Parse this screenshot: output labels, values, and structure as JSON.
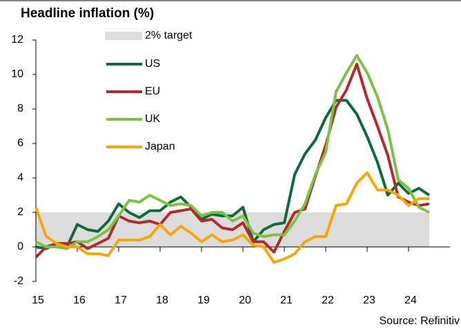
{
  "chart_data": {
    "type": "line",
    "title": "Headline inflation (%)",
    "source": "Source: Refinitiv",
    "target": {
      "name": "2% target",
      "ylim": [
        0,
        2
      ],
      "xlim": [
        2015,
        2024.5
      ],
      "color": "#dcdcdc"
    },
    "x": [
      2015,
      2015.25,
      2015.5,
      2015.75,
      2016,
      2016.25,
      2016.5,
      2016.75,
      2017,
      2017.25,
      2017.5,
      2017.75,
      2018,
      2018.25,
      2018.5,
      2018.75,
      2019,
      2019.25,
      2019.5,
      2019.75,
      2020,
      2020.25,
      2020.5,
      2020.75,
      2021,
      2021.25,
      2021.5,
      2021.75,
      2022,
      2022.25,
      2022.5,
      2022.75,
      2023,
      2023.25,
      2023.5,
      2023.75,
      2024,
      2024.25,
      2024.5
    ],
    "series": [
      {
        "name": "US",
        "color": "#0b6b3a",
        "values": [
          0,
          -0.1,
          0.2,
          0,
          1.3,
          1.0,
          0.9,
          1.5,
          2.5,
          2.0,
          1.7,
          2.1,
          2.1,
          2.6,
          2.9,
          2.3,
          1.6,
          1.9,
          1.8,
          1.8,
          2.3,
          0.3,
          1.0,
          1.3,
          1.4,
          4.2,
          5.4,
          6.2,
          7.5,
          8.5,
          8.5,
          7.7,
          6.4,
          4.9,
          3.0,
          3.7,
          3.1,
          3.4,
          3.0
        ]
      },
      {
        "name": "EU",
        "color": "#b5282c",
        "values": [
          -0.6,
          0,
          0.2,
          0.2,
          0.3,
          -0.1,
          0.2,
          0.5,
          1.8,
          1.5,
          1.4,
          1.5,
          1.3,
          2.0,
          2.1,
          2.2,
          1.5,
          1.6,
          1.1,
          1.0,
          1.4,
          0.3,
          0.3,
          -0.3,
          0.9,
          2.0,
          2.2,
          4.1,
          5.9,
          8.1,
          9.1,
          10.6,
          8.6,
          7.0,
          5.3,
          2.9,
          2.6,
          2.4,
          2.5
        ]
      },
      {
        "name": "UK",
        "color": "#7cc242",
        "values": [
          0.3,
          0,
          0,
          -0.1,
          0.3,
          0.3,
          0.6,
          1.0,
          1.8,
          2.7,
          2.6,
          3.0,
          2.7,
          2.4,
          2.5,
          2.4,
          1.8,
          2.0,
          2.0,
          1.5,
          1.8,
          0.8,
          0.6,
          0.7,
          0.7,
          1.5,
          2.5,
          4.2,
          5.5,
          9.0,
          10.1,
          11.1,
          10.1,
          8.7,
          6.8,
          3.9,
          3.4,
          2.3,
          2.0
        ]
      },
      {
        "name": "Japan",
        "color": "#f5a800",
        "values": [
          2.3,
          0.6,
          0.2,
          0,
          0,
          -0.4,
          -0.4,
          -0.5,
          0.4,
          0.4,
          0.4,
          0.6,
          1.3,
          0.7,
          1.2,
          0.8,
          0.3,
          0.7,
          0.3,
          0.4,
          0.7,
          0.1,
          0,
          -0.9,
          -0.7,
          -0.4,
          0.3,
          0.6,
          0.6,
          2.4,
          2.5,
          3.7,
          4.3,
          3.3,
          3.3,
          3.0,
          2.4,
          2.8,
          2.8
        ]
      }
    ],
    "xlim": [
      2015,
      2025
    ],
    "xticks": [
      {
        "value": 2015,
        "label": "15"
      },
      {
        "value": 2016,
        "label": "16"
      },
      {
        "value": 2017,
        "label": "17"
      },
      {
        "value": 2018,
        "label": "18"
      },
      {
        "value": 2019,
        "label": "19"
      },
      {
        "value": 2020,
        "label": "20"
      },
      {
        "value": 2021,
        "label": "21"
      },
      {
        "value": 2022,
        "label": "22"
      },
      {
        "value": 2023,
        "label": "23"
      },
      {
        "value": 2024,
        "label": "24"
      }
    ],
    "ylim": [
      -2,
      12
    ],
    "yticks": [
      -2,
      0,
      2,
      4,
      6,
      8,
      10,
      12
    ],
    "grid": false
  }
}
